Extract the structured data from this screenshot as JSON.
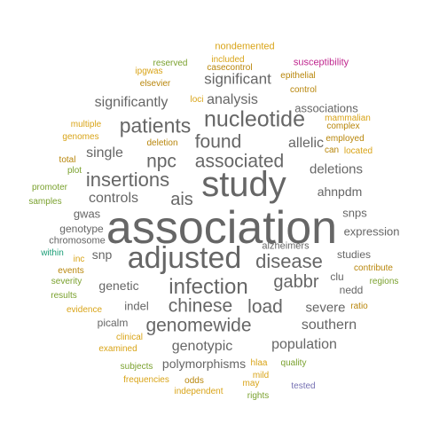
{
  "cloud": {
    "words": [
      {
        "text": "association",
        "color": "#666666"
      },
      {
        "text": "study",
        "color": "#666666"
      },
      {
        "text": "adjusted",
        "color": "#666666"
      },
      {
        "text": "infection",
        "color": "#666666"
      },
      {
        "text": "nucleotide",
        "color": "#666666"
      },
      {
        "text": "patients",
        "color": "#666666"
      },
      {
        "text": "associated",
        "color": "#666666"
      },
      {
        "text": "insertions",
        "color": "#666666"
      },
      {
        "text": "found",
        "color": "#666666"
      },
      {
        "text": "npc",
        "color": "#666666"
      },
      {
        "text": "genomewide",
        "color": "#666666"
      },
      {
        "text": "disease",
        "color": "#666666"
      },
      {
        "text": "gabbr",
        "color": "#666666"
      },
      {
        "text": "chinese",
        "color": "#666666"
      },
      {
        "text": "load",
        "color": "#666666"
      },
      {
        "text": "ais",
        "color": "#666666"
      },
      {
        "text": "significant",
        "color": "#666666"
      },
      {
        "text": "significantly",
        "color": "#666666"
      },
      {
        "text": "analysis",
        "color": "#666666"
      },
      {
        "text": "single",
        "color": "#666666"
      },
      {
        "text": "controls",
        "color": "#666666"
      },
      {
        "text": "allelic",
        "color": "#666666"
      },
      {
        "text": "deletions",
        "color": "#666666"
      },
      {
        "text": "ahnpdm",
        "color": "#666666"
      },
      {
        "text": "population",
        "color": "#666666"
      },
      {
        "text": "genotypic",
        "color": "#666666"
      },
      {
        "text": "polymorphisms",
        "color": "#666666"
      },
      {
        "text": "southern",
        "color": "#666666"
      },
      {
        "text": "severe",
        "color": "#666666"
      },
      {
        "text": "genetic",
        "color": "#666666"
      },
      {
        "text": "indel",
        "color": "#666666"
      },
      {
        "text": "snp",
        "color": "#666666"
      },
      {
        "text": "expression",
        "color": "#666666"
      },
      {
        "text": "snps",
        "color": "#666666"
      },
      {
        "text": "associations",
        "color": "#666666"
      },
      {
        "text": "gwas",
        "color": "#666666"
      },
      {
        "text": "genotype",
        "color": "#666666"
      },
      {
        "text": "studies",
        "color": "#666666"
      },
      {
        "text": "picalm",
        "color": "#666666"
      },
      {
        "text": "nedd",
        "color": "#666666"
      },
      {
        "text": "clu",
        "color": "#666666"
      },
      {
        "text": "alzheimers",
        "color": "#666666"
      },
      {
        "text": "chromosome",
        "color": "#666666"
      },
      {
        "text": "nondemented",
        "color": "#d9a418"
      },
      {
        "text": "included",
        "color": "#d9a418"
      },
      {
        "text": "casecontrol",
        "color": "#b8860b"
      },
      {
        "text": "reserved",
        "color": "#7aa12e"
      },
      {
        "text": "susceptibility",
        "color": "#c0288f"
      },
      {
        "text": "ipgwas",
        "color": "#d9a418"
      },
      {
        "text": "elsevier",
        "color": "#b8860b"
      },
      {
        "text": "epithelial",
        "color": "#b8860b"
      },
      {
        "text": "control",
        "color": "#b8860b"
      },
      {
        "text": "loci",
        "color": "#d9a418"
      },
      {
        "text": "mammalian",
        "color": "#d9a418"
      },
      {
        "text": "multiple",
        "color": "#d9a418"
      },
      {
        "text": "complex",
        "color": "#b8860b"
      },
      {
        "text": "genomes",
        "color": "#d9a418"
      },
      {
        "text": "deletion",
        "color": "#b8860b"
      },
      {
        "text": "employed",
        "color": "#b8860b"
      },
      {
        "text": "can",
        "color": "#b8860b"
      },
      {
        "text": "located",
        "color": "#d9a418"
      },
      {
        "text": "total",
        "color": "#b8860b"
      },
      {
        "text": "plot",
        "color": "#7aa12e"
      },
      {
        "text": "promoter",
        "color": "#7aa12e"
      },
      {
        "text": "samples",
        "color": "#7aa12e"
      },
      {
        "text": "within",
        "color": "#1b9e77"
      },
      {
        "text": "inc",
        "color": "#d9a418"
      },
      {
        "text": "events",
        "color": "#b8860b"
      },
      {
        "text": "contribute",
        "color": "#b8860b"
      },
      {
        "text": "severity",
        "color": "#7aa12e"
      },
      {
        "text": "regions",
        "color": "#7aa12e"
      },
      {
        "text": "results",
        "color": "#7aa12e"
      },
      {
        "text": "evidence",
        "color": "#d9a418"
      },
      {
        "text": "ratio",
        "color": "#b8860b"
      },
      {
        "text": "clinical",
        "color": "#d9a418"
      },
      {
        "text": "examined",
        "color": "#d9a418"
      },
      {
        "text": "subjects",
        "color": "#7aa12e"
      },
      {
        "text": "hlaa",
        "color": "#d9a418"
      },
      {
        "text": "quality",
        "color": "#7aa12e"
      },
      {
        "text": "odds",
        "color": "#b8860b"
      },
      {
        "text": "mild",
        "color": "#d9a418"
      },
      {
        "text": "frequencies",
        "color": "#d9a418"
      },
      {
        "text": "may",
        "color": "#d9a418"
      },
      {
        "text": "tested",
        "color": "#7570b3"
      },
      {
        "text": "independent",
        "color": "#d9a418"
      },
      {
        "text": "rights",
        "color": "#7aa12e"
      }
    ]
  }
}
